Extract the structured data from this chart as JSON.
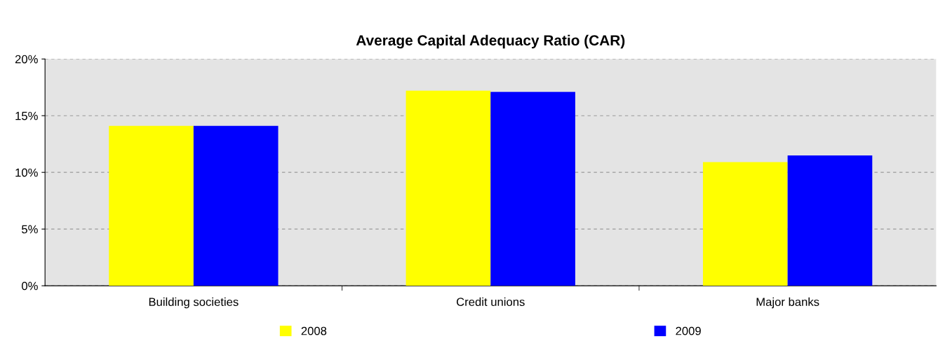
{
  "chart_data": {
    "type": "bar",
    "title": "Average Capital Adequacy Ratio (CAR)",
    "categories": [
      "Building societies",
      "Credit unions",
      "Major banks"
    ],
    "series": [
      {
        "name": "2008",
        "color": "#ffff00",
        "values": [
          14.1,
          17.2,
          10.9
        ]
      },
      {
        "name": "2009",
        "color": "#0000ff",
        "values": [
          14.1,
          17.1,
          11.5
        ]
      }
    ],
    "ylim": [
      0,
      20
    ],
    "yticks": [
      {
        "value": 0,
        "label": "0%"
      },
      {
        "value": 5,
        "label": "5%"
      },
      {
        "value": 10,
        "label": "10%"
      },
      {
        "value": 15,
        "label": "15%"
      },
      {
        "value": 20,
        "label": "20%"
      }
    ],
    "grid": "y",
    "legend": "bottom"
  }
}
